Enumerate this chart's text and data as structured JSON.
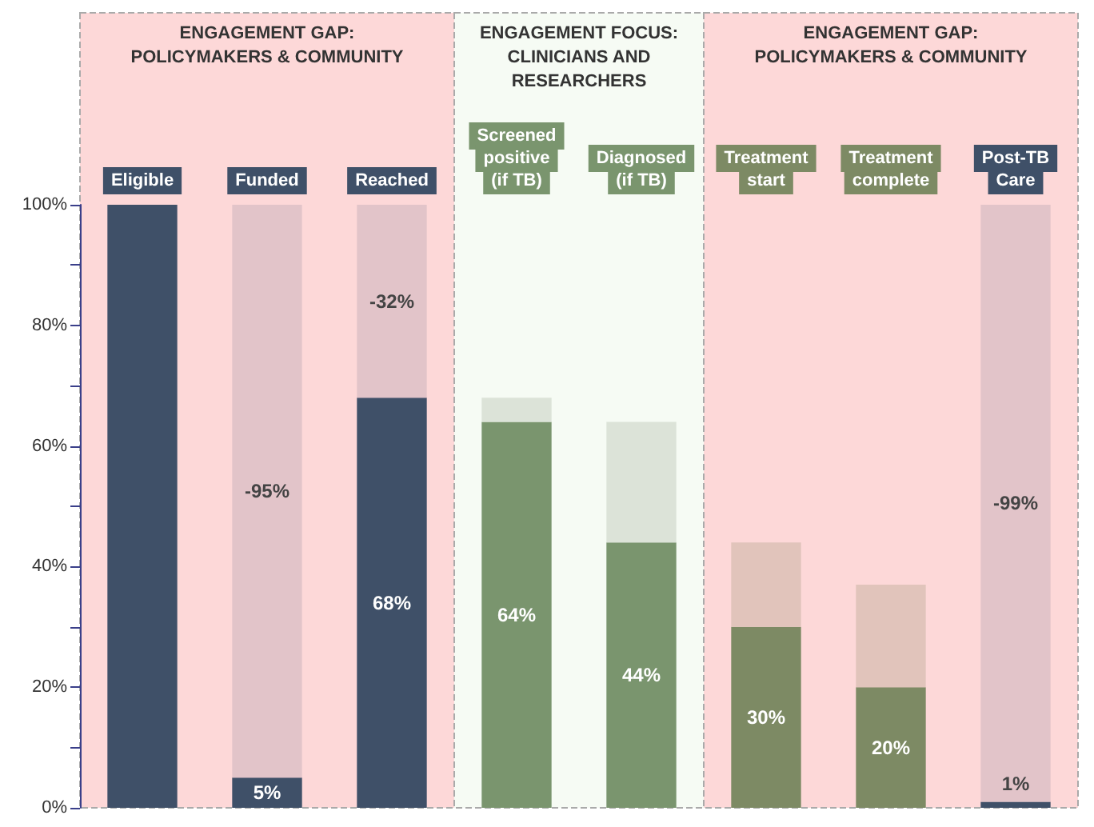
{
  "chart_data": {
    "type": "bar",
    "grid": false,
    "categories": [
      "Eligible",
      "Funded",
      "Reached",
      "Screened\npositive\n(if TB)",
      "Diagnosed\n(if TB)",
      "Treatment\nstart",
      "Treatment\ncomplete",
      "Post-TB\nCare"
    ],
    "series": [
      {
        "colors": [
          "#3f5068",
          "#3f5068",
          "#3f5068",
          "#7a956e",
          "#7a956e",
          "#7d8a64",
          "#7d8a64",
          "#3f5068"
        ],
        "base": [
          0,
          0,
          0,
          0,
          0,
          0,
          0,
          0
        ],
        "values": [
          100,
          5,
          68,
          64,
          44,
          30,
          20,
          1
        ],
        "value_labels": [
          null,
          "5%",
          "68%",
          "64%",
          "44%",
          "30%",
          "20%",
          "1%"
        ]
      },
      {
        "colors": [
          "#e2c4c9",
          "#e2c4c9",
          "#e2c4c9",
          "#dce3d8",
          "#dce3d8",
          "#e1c4bb",
          "#e1c4bb",
          "#e2c4c9"
        ],
        "base": [
          null,
          100,
          100,
          68,
          64,
          44,
          37,
          100
        ],
        "values": [
          null,
          -95,
          -32,
          -4,
          -20,
          -14,
          -17,
          -99
        ],
        "value_labels": [
          null,
          "-95%",
          "-32%",
          null,
          null,
          null,
          null,
          "-99%"
        ]
      }
    ],
    "ylim": [
      0,
      100
    ],
    "yticks": [
      {
        "value": 0,
        "label": "0%"
      },
      {
        "value": 10,
        "label": null
      },
      {
        "value": 20,
        "label": "20%"
      },
      {
        "value": 30,
        "label": null
      },
      {
        "value": 40,
        "label": "40%"
      },
      {
        "value": 50,
        "label": null
      },
      {
        "value": 60,
        "label": "60%"
      },
      {
        "value": 70,
        "label": null
      },
      {
        "value": 80,
        "label": "80%"
      },
      {
        "value": 90,
        "label": null
      },
      {
        "value": 100,
        "label": "100%"
      }
    ],
    "bands": [
      {
        "axis": "x",
        "from": "Eligible",
        "to": "Reached",
        "label": "ENGAGEMENT GAP:\nPOLICYMAKERS & COMMUNITY",
        "color": "#fdd8d8"
      },
      {
        "axis": "x",
        "from": "Screened\npositive\n(if TB)",
        "to": "Diagnosed\n(if TB)",
        "label": "ENGAGEMENT FOCUS:\nCLINICIANS AND\nRESEARCHERS",
        "color": "#f6fbf4"
      },
      {
        "axis": "x",
        "from": "Treatment\nstart",
        "to": "Post-TB\nCare",
        "label": "ENGAGEMENT GAP:\nPOLICYMAKERS & COMMUNITY",
        "color": "#fdd8d8"
      }
    ]
  }
}
